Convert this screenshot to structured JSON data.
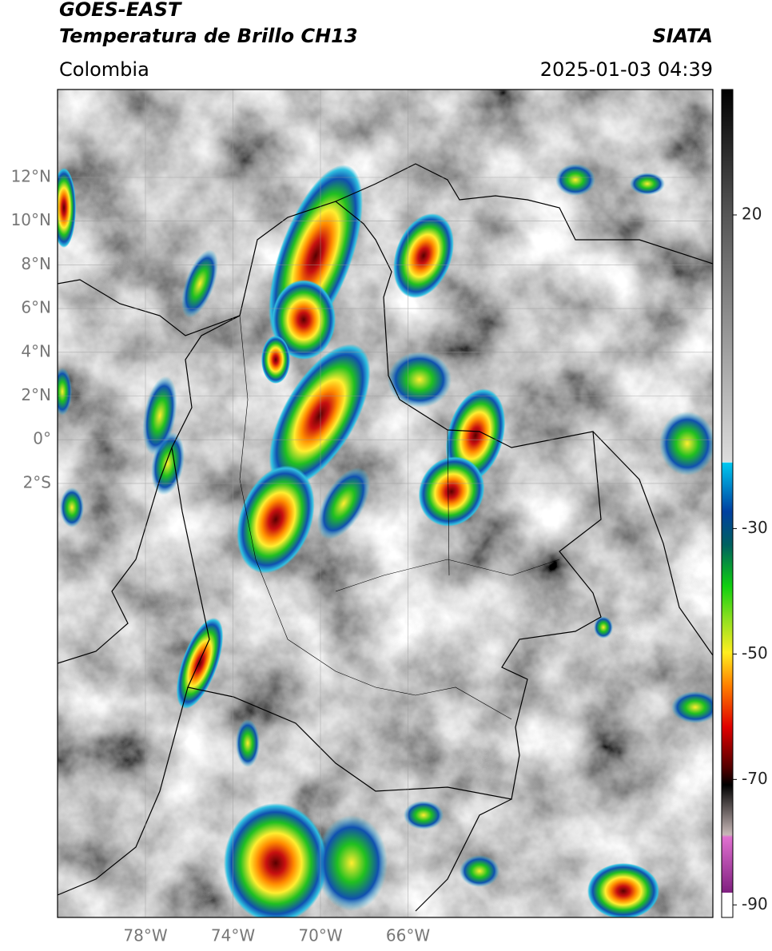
{
  "header": {
    "title_line1": "GOES-EAST",
    "title_line2": "Temperatura de Brillo CH13",
    "region": "Colombia",
    "source": "SIATA",
    "datetime": "2025-01-03 04:39"
  },
  "map": {
    "lat_labels": [
      "12°N",
      "10°N",
      "8°N",
      "6°N",
      "4°N",
      "2°N",
      "0°",
      "2°S"
    ],
    "lon_labels": [
      "78°W",
      "74°W",
      "70°W",
      "66°W"
    ]
  },
  "colorbar": {
    "range": [
      -92,
      40
    ],
    "ticks": [
      20,
      -30,
      -50,
      -70,
      -90
    ]
  }
}
